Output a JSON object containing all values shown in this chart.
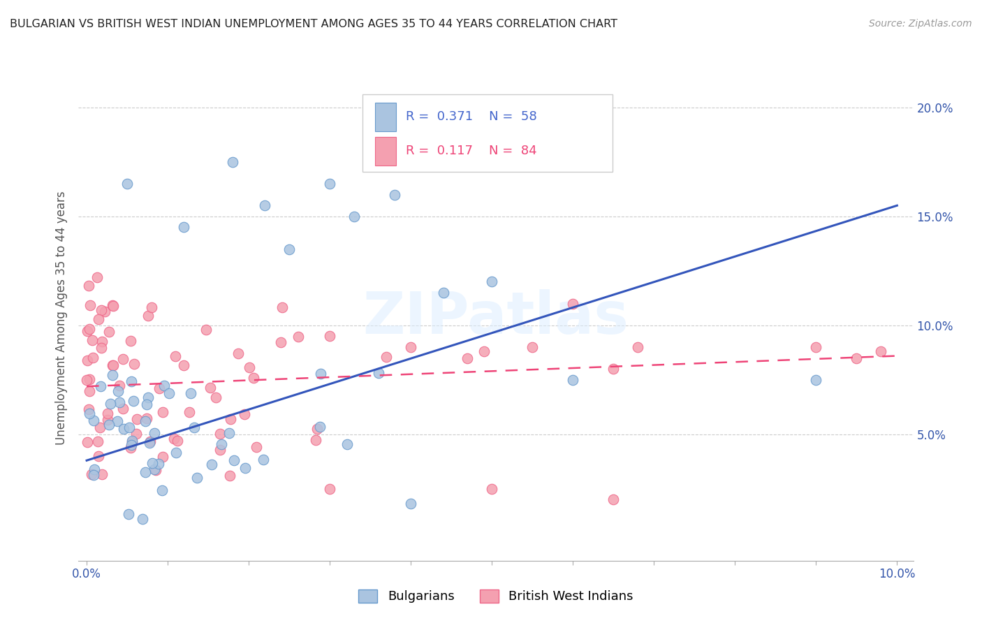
{
  "title": "BULGARIAN VS BRITISH WEST INDIAN UNEMPLOYMENT AMONG AGES 35 TO 44 YEARS CORRELATION CHART",
  "source": "Source: ZipAtlas.com",
  "ylabel": "Unemployment Among Ages 35 to 44 years",
  "xlim": [
    -0.001,
    0.102
  ],
  "ylim": [
    -0.008,
    0.215
  ],
  "xtick_positions": [
    0.0,
    0.01,
    0.02,
    0.03,
    0.04,
    0.05,
    0.06,
    0.07,
    0.08,
    0.09,
    0.1
  ],
  "xtick_labels": [
    "0.0%",
    "",
    "",
    "",
    "",
    "",
    "",
    "",
    "",
    "",
    "10.0%"
  ],
  "ytick_positions": [
    0.05,
    0.1,
    0.15,
    0.2
  ],
  "ytick_labels": [
    "5.0%",
    "10.0%",
    "15.0%",
    "20.0%"
  ],
  "blue_scatter_color": "#aac4e0",
  "blue_scatter_edge": "#6699cc",
  "pink_scatter_color": "#f4a0b0",
  "pink_scatter_edge": "#ee6688",
  "blue_line_color": "#3355bb",
  "pink_line_color": "#ee4477",
  "blue_trend_x": [
    0.0,
    0.1
  ],
  "blue_trend_y": [
    0.038,
    0.155
  ],
  "pink_trend_x": [
    0.0,
    0.1
  ],
  "pink_trend_y": [
    0.072,
    0.086
  ],
  "watermark": "ZIPatlas",
  "legend_r1": "R = 0.371",
  "legend_n1": "N = 58",
  "legend_r2": "R = 0.117",
  "legend_n2": "N = 84",
  "grid_color": "#cccccc",
  "background": "#ffffff"
}
